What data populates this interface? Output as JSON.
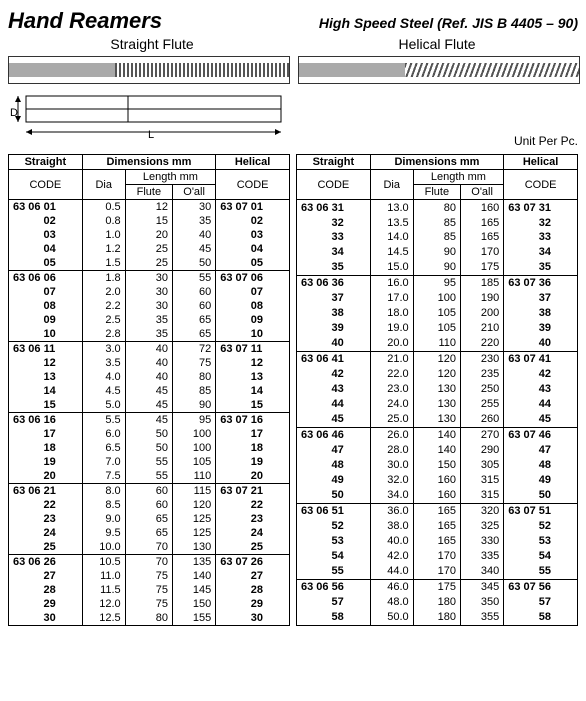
{
  "header": {
    "title": "Hand Reamers",
    "subtitle": "High Speed Steel  (Ref. JIS B 4405 – 90)",
    "straight_flute": "Straight Flute",
    "helical_flute": "Helical Flute",
    "unit": "Unit Per Pc."
  },
  "columns": {
    "straight": "Straight",
    "dimensions": "Dimensions mm",
    "helical": "Helical",
    "code": "CODE",
    "dia": "Dia",
    "length": "Length mm",
    "flute": "Flute",
    "oall": "O'all"
  },
  "leftGroups": [
    [
      {
        "s": "63 06 01",
        "d": "0.5",
        "f": "12",
        "o": "30",
        "h": "63 07 01"
      },
      {
        "s": "02",
        "d": "0.8",
        "f": "15",
        "o": "35",
        "h": "02"
      },
      {
        "s": "03",
        "d": "1.0",
        "f": "20",
        "o": "40",
        "h": "03"
      },
      {
        "s": "04",
        "d": "1.2",
        "f": "25",
        "o": "45",
        "h": "04"
      },
      {
        "s": "05",
        "d": "1.5",
        "f": "25",
        "o": "50",
        "h": "05"
      }
    ],
    [
      {
        "s": "63 06 06",
        "d": "1.8",
        "f": "30",
        "o": "55",
        "h": "63 07 06"
      },
      {
        "s": "07",
        "d": "2.0",
        "f": "30",
        "o": "60",
        "h": "07"
      },
      {
        "s": "08",
        "d": "2.2",
        "f": "30",
        "o": "60",
        "h": "08"
      },
      {
        "s": "09",
        "d": "2.5",
        "f": "35",
        "o": "65",
        "h": "09"
      },
      {
        "s": "10",
        "d": "2.8",
        "f": "35",
        "o": "65",
        "h": "10"
      }
    ],
    [
      {
        "s": "63 06 11",
        "d": "3.0",
        "f": "40",
        "o": "72",
        "h": "63 07 11"
      },
      {
        "s": "12",
        "d": "3.5",
        "f": "40",
        "o": "75",
        "h": "12"
      },
      {
        "s": "13",
        "d": "4.0",
        "f": "40",
        "o": "80",
        "h": "13"
      },
      {
        "s": "14",
        "d": "4.5",
        "f": "45",
        "o": "85",
        "h": "14"
      },
      {
        "s": "15",
        "d": "5.0",
        "f": "45",
        "o": "90",
        "h": "15"
      }
    ],
    [
      {
        "s": "63 06 16",
        "d": "5.5",
        "f": "45",
        "o": "95",
        "h": "63 07 16"
      },
      {
        "s": "17",
        "d": "6.0",
        "f": "50",
        "o": "100",
        "h": "17"
      },
      {
        "s": "18",
        "d": "6.5",
        "f": "50",
        "o": "100",
        "h": "18"
      },
      {
        "s": "19",
        "d": "7.0",
        "f": "55",
        "o": "105",
        "h": "19"
      },
      {
        "s": "20",
        "d": "7.5",
        "f": "55",
        "o": "110",
        "h": "20"
      }
    ],
    [
      {
        "s": "63 06 21",
        "d": "8.0",
        "f": "60",
        "o": "115",
        "h": "63 07 21"
      },
      {
        "s": "22",
        "d": "8.5",
        "f": "60",
        "o": "120",
        "h": "22"
      },
      {
        "s": "23",
        "d": "9.0",
        "f": "65",
        "o": "125",
        "h": "23"
      },
      {
        "s": "24",
        "d": "9.5",
        "f": "65",
        "o": "125",
        "h": "24"
      },
      {
        "s": "25",
        "d": "10.0",
        "f": "70",
        "o": "130",
        "h": "25"
      }
    ],
    [
      {
        "s": "63 06 26",
        "d": "10.5",
        "f": "70",
        "o": "135",
        "h": "63 07 26"
      },
      {
        "s": "27",
        "d": "11.0",
        "f": "75",
        "o": "140",
        "h": "27"
      },
      {
        "s": "28",
        "d": "11.5",
        "f": "75",
        "o": "145",
        "h": "28"
      },
      {
        "s": "29",
        "d": "12.0",
        "f": "75",
        "o": "150",
        "h": "29"
      },
      {
        "s": "30",
        "d": "12.5",
        "f": "80",
        "o": "155",
        "h": "30"
      }
    ]
  ],
  "rightGroups": [
    [
      {
        "s": "63 06 31",
        "d": "13.0",
        "f": "80",
        "o": "160",
        "h": "63 07 31"
      },
      {
        "s": "32",
        "d": "13.5",
        "f": "85",
        "o": "165",
        "h": "32"
      },
      {
        "s": "33",
        "d": "14.0",
        "f": "85",
        "o": "165",
        "h": "33"
      },
      {
        "s": "34",
        "d": "14.5",
        "f": "90",
        "o": "170",
        "h": "34"
      },
      {
        "s": "35",
        "d": "15.0",
        "f": "90",
        "o": "175",
        "h": "35"
      }
    ],
    [
      {
        "s": "63 06 36",
        "d": "16.0",
        "f": "95",
        "o": "185",
        "h": "63 07 36"
      },
      {
        "s": "37",
        "d": "17.0",
        "f": "100",
        "o": "190",
        "h": "37"
      },
      {
        "s": "38",
        "d": "18.0",
        "f": "105",
        "o": "200",
        "h": "38"
      },
      {
        "s": "39",
        "d": "19.0",
        "f": "105",
        "o": "210",
        "h": "39"
      },
      {
        "s": "40",
        "d": "20.0",
        "f": "110",
        "o": "220",
        "h": "40"
      }
    ],
    [
      {
        "s": "63 06 41",
        "d": "21.0",
        "f": "120",
        "o": "230",
        "h": "63 07 41"
      },
      {
        "s": "42",
        "d": "22.0",
        "f": "120",
        "o": "235",
        "h": "42"
      },
      {
        "s": "43",
        "d": "23.0",
        "f": "130",
        "o": "250",
        "h": "43"
      },
      {
        "s": "44",
        "d": "24.0",
        "f": "130",
        "o": "255",
        "h": "44"
      },
      {
        "s": "45",
        "d": "25.0",
        "f": "130",
        "o": "260",
        "h": "45"
      }
    ],
    [
      {
        "s": "63 06 46",
        "d": "26.0",
        "f": "140",
        "o": "270",
        "h": "63 07 46"
      },
      {
        "s": "47",
        "d": "28.0",
        "f": "140",
        "o": "290",
        "h": "47"
      },
      {
        "s": "48",
        "d": "30.0",
        "f": "150",
        "o": "305",
        "h": "48"
      },
      {
        "s": "49",
        "d": "32.0",
        "f": "160",
        "o": "315",
        "h": "49"
      },
      {
        "s": "50",
        "d": "34.0",
        "f": "160",
        "o": "315",
        "h": "50"
      }
    ],
    [
      {
        "s": "63 06 51",
        "d": "36.0",
        "f": "165",
        "o": "320",
        "h": "63 07 51"
      },
      {
        "s": "52",
        "d": "38.0",
        "f": "165",
        "o": "325",
        "h": "52"
      },
      {
        "s": "53",
        "d": "40.0",
        "f": "165",
        "o": "330",
        "h": "53"
      },
      {
        "s": "54",
        "d": "42.0",
        "f": "170",
        "o": "335",
        "h": "54"
      },
      {
        "s": "55",
        "d": "44.0",
        "f": "170",
        "o": "340",
        "h": "55"
      }
    ],
    [
      {
        "s": "63 06 56",
        "d": "46.0",
        "f": "175",
        "o": "345",
        "h": "63 07 56"
      },
      {
        "s": "57",
        "d": "48.0",
        "f": "180",
        "o": "350",
        "h": "57"
      },
      {
        "s": "58",
        "d": "50.0",
        "f": "180",
        "o": "355",
        "h": "58"
      }
    ]
  ]
}
